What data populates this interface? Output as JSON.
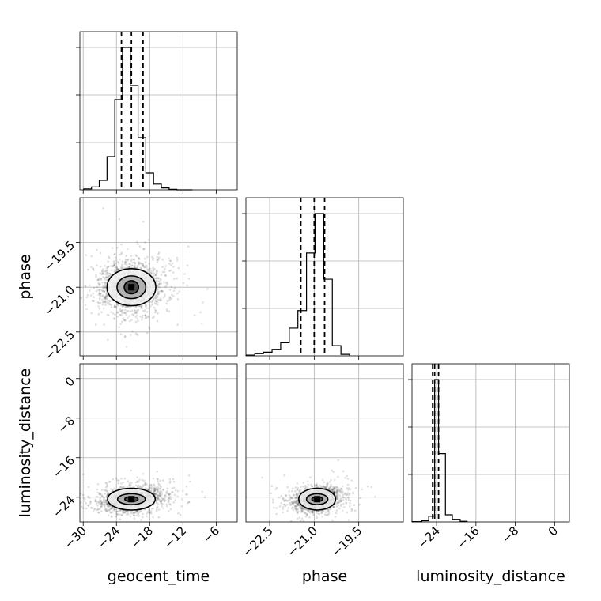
{
  "chart_data": {
    "type": "scatter",
    "kind": "corner-plot",
    "parameters": [
      "geocent_time",
      "phase",
      "luminosity_distance"
    ],
    "axes": {
      "geocent_time": {
        "label": "geocent_time",
        "range": [
          -30.6,
          -2.2
        ],
        "ticks": [
          -30,
          -24,
          -18,
          -12,
          -6
        ],
        "tick_labels": [
          "−30",
          "−24",
          "−18",
          "−12",
          "−6"
        ]
      },
      "phase": {
        "label": "phase",
        "range": [
          -23.3,
          -18.0
        ],
        "ticks": [
          -22.5,
          -21.0,
          -19.5
        ],
        "tick_labels": [
          "−22.5",
          "−21.0",
          "−19.5"
        ]
      },
      "luminosity_distance": {
        "label": "luminosity_distance",
        "range": [
          -29.0,
          3.0
        ],
        "ticks": [
          -24,
          -16,
          -8,
          0
        ],
        "tick_labels": [
          "−24",
          "−16",
          "−8",
          "0"
        ]
      }
    },
    "quantiles": {
      "geocent_time": [
        -23.1,
        -21.3,
        -19.2
      ],
      "phase": [
        -21.45,
        -21.0,
        -20.65
      ],
      "luminosity_distance": [
        -24.8,
        -24.4,
        -23.6
      ]
    },
    "histograms": {
      "geocent_time": {
        "edges": [
          -29.9,
          -28.5,
          -27.1,
          -25.7,
          -24.3,
          -22.9,
          -21.5,
          -20.1,
          -18.7,
          -17.3,
          -15.9,
          -14.5,
          -13.1,
          -11.7,
          -10.3
        ],
        "counts": [
          2,
          6,
          20,
          70,
          190,
          300,
          220,
          110,
          35,
          12,
          4,
          1,
          0,
          0
        ]
      },
      "phase": {
        "edges": [
          -23.29,
          -23.0,
          -22.71,
          -22.42,
          -22.13,
          -21.84,
          -21.55,
          -21.26,
          -20.97,
          -20.68,
          -20.39,
          -20.1,
          -19.81
        ],
        "counts": [
          2,
          6,
          10,
          18,
          36,
          76,
          124,
          282,
          390,
          210,
          28,
          4
        ]
      },
      "luminosity_distance": {
        "edges": [
          -29.0,
          -27.0,
          -25.6,
          -24.4,
          -23.6,
          -22.2,
          -20.8,
          -19.2,
          -17.8
        ],
        "counts": [
          2,
          8,
          40,
          1000,
          480,
          50,
          18,
          4
        ]
      }
    },
    "joint": {
      "phase_vs_geocent_time": {
        "center": [
          -21.3,
          -21.0
        ],
        "contour_radii": [
          [
            1.3,
            0.22
          ],
          [
            2.6,
            0.38
          ],
          [
            4.4,
            0.62
          ]
        ]
      },
      "luminosity_distance_vs_geocent_time": {
        "center": [
          -21.3,
          -24.4
        ],
        "contour_radii": [
          [
            1.2,
            0.5
          ],
          [
            2.5,
            1.1
          ],
          [
            4.3,
            2.2
          ]
        ]
      },
      "luminosity_distance_vs_phase": {
        "center": [
          -20.9,
          -24.4
        ],
        "contour_radii": [
          [
            0.18,
            0.5
          ],
          [
            0.36,
            1.1
          ],
          [
            0.62,
            2.2
          ]
        ]
      }
    },
    "grid": true
  }
}
